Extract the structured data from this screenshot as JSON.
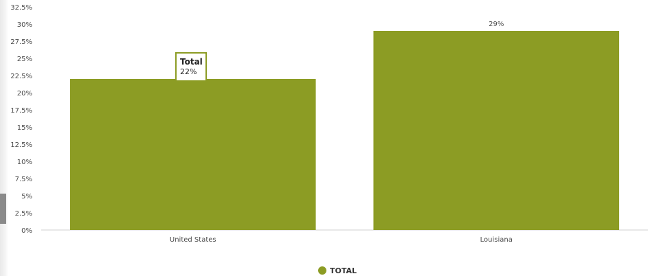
{
  "chart_data": {
    "type": "bar",
    "categories": [
      "United States",
      "Louisiana"
    ],
    "series": [
      {
        "name": "TOTAL",
        "values": [
          22,
          29
        ],
        "color": "#8c9c24"
      }
    ],
    "value_labels": [
      "22%",
      "29%"
    ],
    "tooltip": {
      "title": "Total",
      "value": "22%",
      "category": "United States"
    },
    "y_ticks": [
      "0%",
      "2.5%",
      "5%",
      "7.5%",
      "10%",
      "12.5%",
      "15%",
      "17.5%",
      "20%",
      "22.5%",
      "25%",
      "27.5%",
      "30%",
      "32.5%"
    ],
    "ylim": [
      0,
      32.5
    ],
    "grid": false,
    "legend": {
      "position": "bottom",
      "label": "TOTAL"
    }
  },
  "colors": {
    "bar": "#8c9c24",
    "axis_text": "#4a4a4a",
    "baseline": "#d0d0d0"
  }
}
